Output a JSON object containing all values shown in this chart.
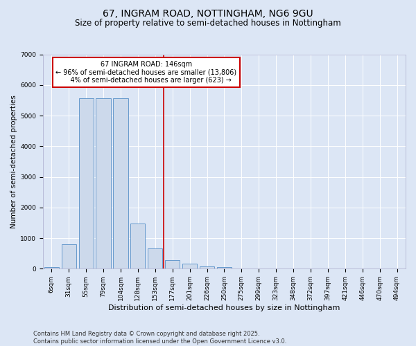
{
  "title": "67, INGRAM ROAD, NOTTINGHAM, NG6 9GU",
  "subtitle": "Size of property relative to semi-detached houses in Nottingham",
  "xlabel": "Distribution of semi-detached houses by size in Nottingham",
  "ylabel": "Number of semi-detached properties",
  "categories": [
    "6sqm",
    "31sqm",
    "55sqm",
    "79sqm",
    "104sqm",
    "128sqm",
    "153sqm",
    "177sqm",
    "201sqm",
    "226sqm",
    "250sqm",
    "275sqm",
    "299sqm",
    "323sqm",
    "348sqm",
    "372sqm",
    "397sqm",
    "421sqm",
    "446sqm",
    "470sqm",
    "494sqm"
  ],
  "values": [
    50,
    790,
    5560,
    5560,
    5560,
    1480,
    660,
    270,
    160,
    80,
    50,
    0,
    0,
    0,
    0,
    0,
    0,
    0,
    0,
    0,
    0
  ],
  "bar_color": "#ccd9eb",
  "bar_edge_color": "#6699cc",
  "vline_x_index": 6.5,
  "vline_color": "#cc0000",
  "annotation_text": "67 INGRAM ROAD: 146sqm\n← 96% of semi-detached houses are smaller (13,806)\n    4% of semi-detached houses are larger (623) →",
  "annotation_box_color": "#ffffff",
  "annotation_box_edge": "#cc0000",
  "ylim": [
    0,
    7000
  ],
  "yticks": [
    0,
    1000,
    2000,
    3000,
    4000,
    5000,
    6000,
    7000
  ],
  "bg_color": "#dce6f5",
  "plot_bg_color": "#dce6f5",
  "footer": "Contains HM Land Registry data © Crown copyright and database right 2025.\nContains public sector information licensed under the Open Government Licence v3.0.",
  "title_fontsize": 10,
  "subtitle_fontsize": 8.5,
  "xlabel_fontsize": 8,
  "ylabel_fontsize": 7.5,
  "tick_fontsize": 6.5,
  "annot_fontsize": 7,
  "footer_fontsize": 6
}
